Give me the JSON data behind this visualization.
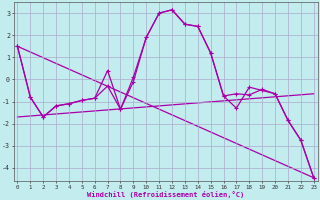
{
  "xlabel": "Windchill (Refroidissement éolien,°C)",
  "background_color": "#c2ecee",
  "grid_color": "#aaaacc",
  "line_color": "#aa00aa",
  "x_ticks": [
    0,
    1,
    2,
    3,
    4,
    5,
    6,
    7,
    8,
    9,
    10,
    11,
    12,
    13,
    14,
    15,
    16,
    17,
    18,
    19,
    20,
    21,
    22,
    23
  ],
  "yticks": [
    -4,
    -3,
    -2,
    -1,
    0,
    1,
    2,
    3
  ],
  "ylim": [
    -4.6,
    3.5
  ],
  "xlim": [
    -0.3,
    23.3
  ],
  "line1_x": [
    0,
    1,
    2,
    3,
    4,
    5,
    6,
    7,
    8,
    9,
    10,
    11,
    12,
    13,
    14,
    15,
    16,
    17,
    18,
    19,
    20,
    21,
    22,
    23
  ],
  "line1_y": [
    1.5,
    -0.8,
    -1.7,
    -1.2,
    -1.1,
    -0.95,
    -0.85,
    -0.3,
    -1.35,
    0.1,
    1.9,
    3.0,
    3.15,
    2.5,
    2.4,
    1.2,
    -0.75,
    -0.65,
    -0.7,
    -0.45,
    -0.65,
    -1.85,
    -2.75,
    -4.45
  ],
  "line2_x": [
    0,
    1,
    2,
    3,
    4,
    5,
    6,
    7,
    8,
    9,
    10,
    11,
    12,
    13,
    14,
    15,
    16,
    17,
    18,
    19,
    20,
    21,
    22,
    23
  ],
  "line2_y": [
    1.5,
    -0.8,
    -1.7,
    -1.2,
    -1.1,
    -0.95,
    -0.85,
    0.4,
    -1.35,
    -0.1,
    1.9,
    3.0,
    3.15,
    2.5,
    2.4,
    1.2,
    -0.75,
    -1.3,
    -0.35,
    -0.5,
    -0.65,
    -1.85,
    -2.75,
    -4.45
  ],
  "line3_x": [
    0,
    23
  ],
  "line3_y": [
    1.5,
    -4.45
  ],
  "line4_x": [
    0,
    23
  ],
  "line4_y": [
    -1.7,
    -0.65
  ]
}
